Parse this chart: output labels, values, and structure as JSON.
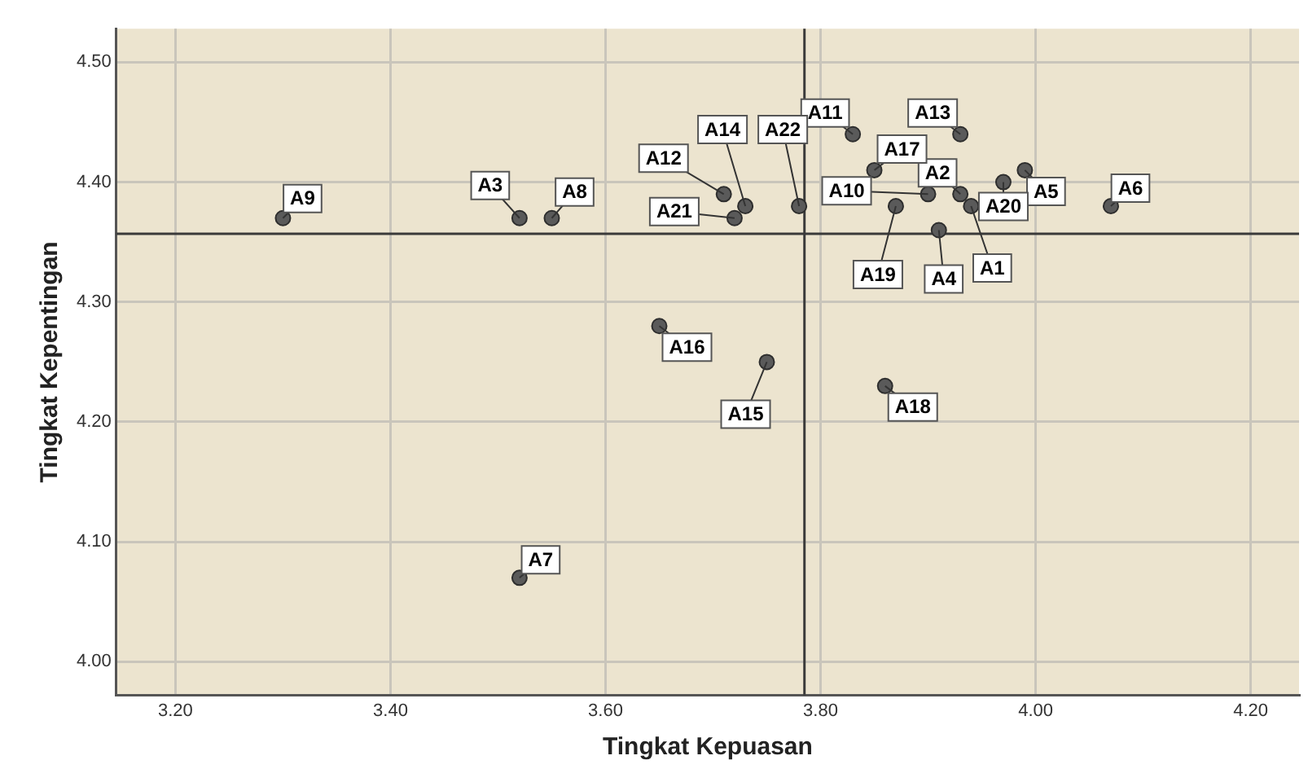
{
  "chart_data": {
    "type": "scatter",
    "xlabel": "Tingkat Kepuasan",
    "ylabel": "Tingkat Kepentingan",
    "x": [
      3.94,
      3.93,
      3.52,
      3.91,
      3.99,
      4.07,
      3.52,
      3.55,
      3.3,
      3.9,
      3.83,
      3.71,
      3.93,
      3.73,
      3.75,
      3.65,
      3.85,
      3.86,
      3.87,
      3.97,
      3.72,
      3.78
    ],
    "series": [
      {
        "color": "#5a5a5a",
        "values": [
          4.38,
          4.39,
          4.37,
          4.36,
          4.41,
          4.38,
          4.07,
          4.37,
          4.37,
          4.39,
          4.44,
          4.39,
          4.44,
          4.38,
          4.25,
          4.28,
          4.41,
          4.23,
          4.38,
          4.4,
          4.37,
          4.38
        ]
      }
    ],
    "xlim": [
      3.145,
      4.245
    ],
    "xticks": [
      {
        "value": 3.2,
        "label": "3.20"
      },
      {
        "value": 3.4,
        "label": "3.40"
      },
      {
        "value": 3.6,
        "label": "3.60"
      },
      {
        "value": 3.8,
        "label": "3.80"
      },
      {
        "value": 4.0,
        "label": "4.00"
      },
      {
        "value": 4.2,
        "label": "4.20"
      }
    ],
    "ylim": [
      3.972,
      4.528
    ],
    "yticks": [
      {
        "value": 4.0,
        "label": "4.00"
      },
      {
        "value": 4.1,
        "label": "4.10"
      },
      {
        "value": 4.2,
        "label": "4.20"
      },
      {
        "value": 4.3,
        "label": "4.30"
      },
      {
        "value": 4.4,
        "label": "4.40"
      },
      {
        "value": 4.5,
        "label": "4.50"
      }
    ],
    "ref_lines": [
      {
        "axis": "x",
        "value": 3.785,
        "color": "#3a3a3a"
      },
      {
        "axis": "y",
        "value": 4.357,
        "color": "#3a3a3a"
      }
    ],
    "grid": true,
    "legend": false,
    "marker": "circle",
    "annotations": [
      {
        "text": "A1",
        "x": 3.94,
        "y": 4.38
      },
      {
        "text": "A2",
        "x": 3.93,
        "y": 4.39
      },
      {
        "text": "A3",
        "x": 3.52,
        "y": 4.37
      },
      {
        "text": "A4",
        "x": 3.91,
        "y": 4.36
      },
      {
        "text": "A5",
        "x": 3.99,
        "y": 4.41
      },
      {
        "text": "A6",
        "x": 4.07,
        "y": 4.38
      },
      {
        "text": "A7",
        "x": 3.52,
        "y": 4.07
      },
      {
        "text": "A8",
        "x": 3.55,
        "y": 4.37
      },
      {
        "text": "A9",
        "x": 3.3,
        "y": 4.37
      },
      {
        "text": "A10",
        "x": 3.9,
        "y": 4.39
      },
      {
        "text": "A11",
        "x": 3.83,
        "y": 4.44
      },
      {
        "text": "A12",
        "x": 3.71,
        "y": 4.39
      },
      {
        "text": "A13",
        "x": 3.93,
        "y": 4.44
      },
      {
        "text": "A14",
        "x": 3.73,
        "y": 4.38
      },
      {
        "text": "A15",
        "x": 3.75,
        "y": 4.25
      },
      {
        "text": "A16",
        "x": 3.65,
        "y": 4.28
      },
      {
        "text": "A17",
        "x": 3.85,
        "y": 4.41
      },
      {
        "text": "A18",
        "x": 3.86,
        "y": 4.23
      },
      {
        "text": "A19",
        "x": 3.87,
        "y": 4.38
      },
      {
        "text": "A20",
        "x": 3.97,
        "y": 4.4
      },
      {
        "text": "A21",
        "x": 3.72,
        "y": 4.37
      },
      {
        "text": "A22",
        "x": 3.78,
        "y": 4.38
      }
    ]
  }
}
